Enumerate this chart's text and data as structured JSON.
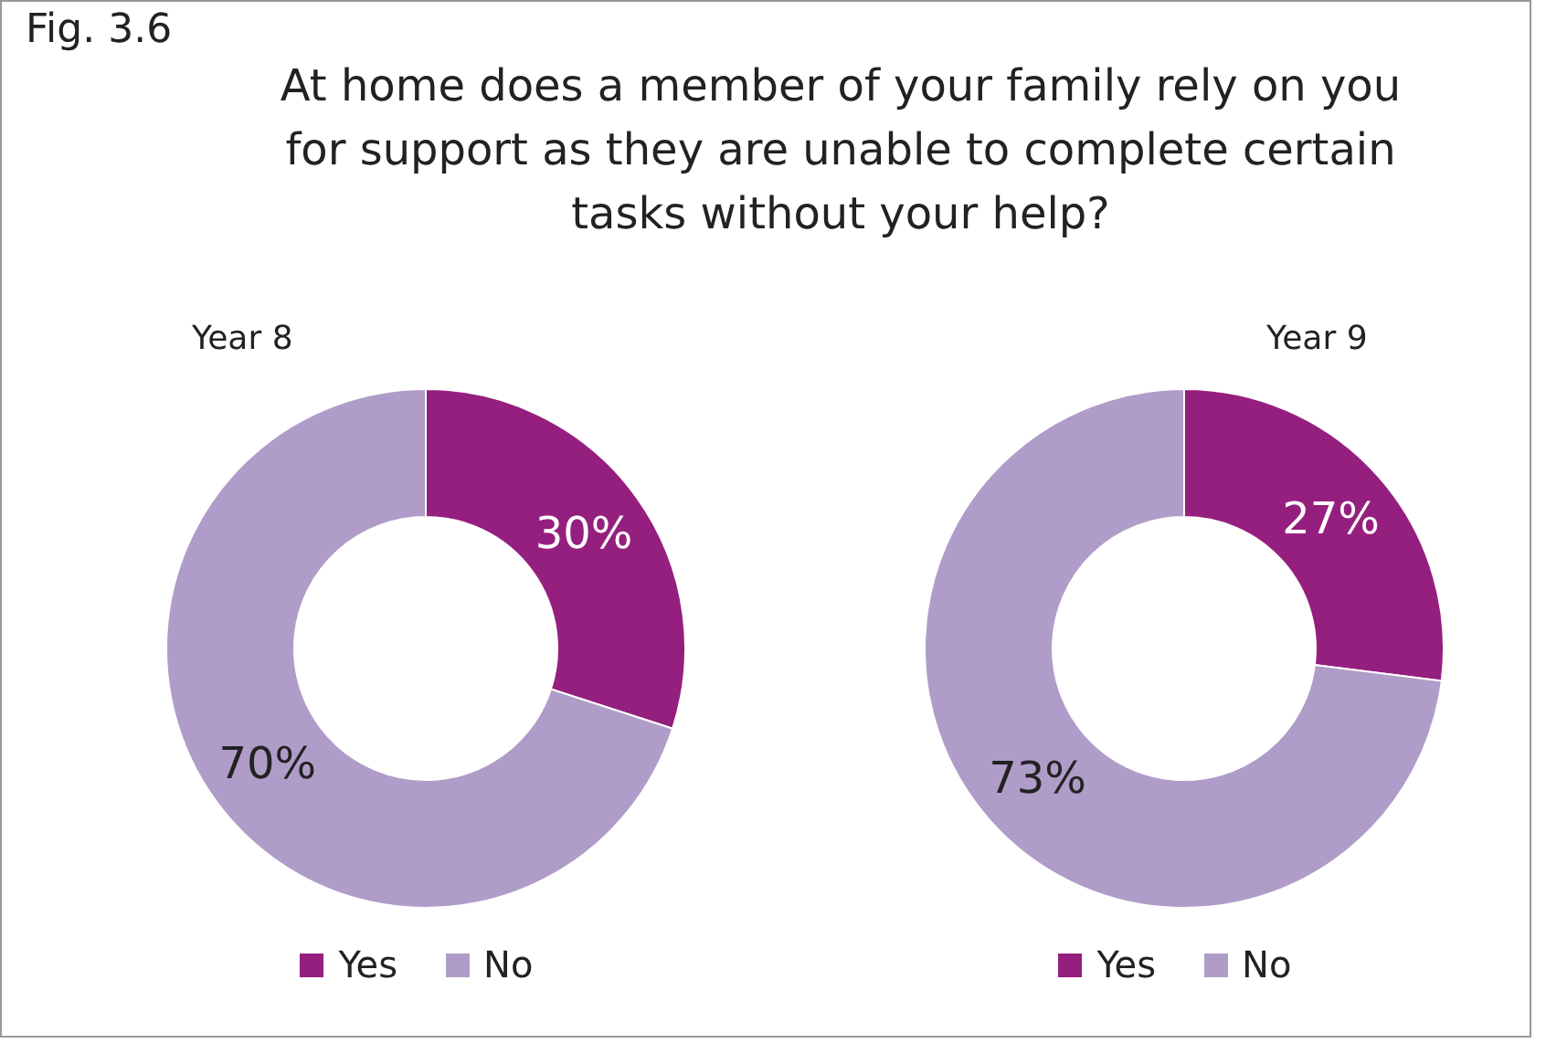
{
  "chart_data": [
    {
      "type": "donut",
      "title": "At home does a member of your family rely on you for support as they are unable to complete certain tasks without your help?",
      "subtitle": "Year 8",
      "annotations": [
        "Fig. 3.6"
      ],
      "categories": [
        "Yes",
        "No"
      ],
      "values": [
        30,
        70
      ],
      "value_labels": [
        "30%",
        "70%"
      ],
      "colors": [
        "#951f7f",
        "#b09cc8"
      ],
      "legend": "bottom"
    },
    {
      "type": "donut",
      "subtitle": "Year 9",
      "categories": [
        "Yes",
        "No"
      ],
      "values": [
        27,
        73
      ],
      "value_labels": [
        "27%",
        "73%"
      ],
      "colors": [
        "#951f7f",
        "#b09cc8"
      ],
      "legend": "bottom"
    }
  ]
}
